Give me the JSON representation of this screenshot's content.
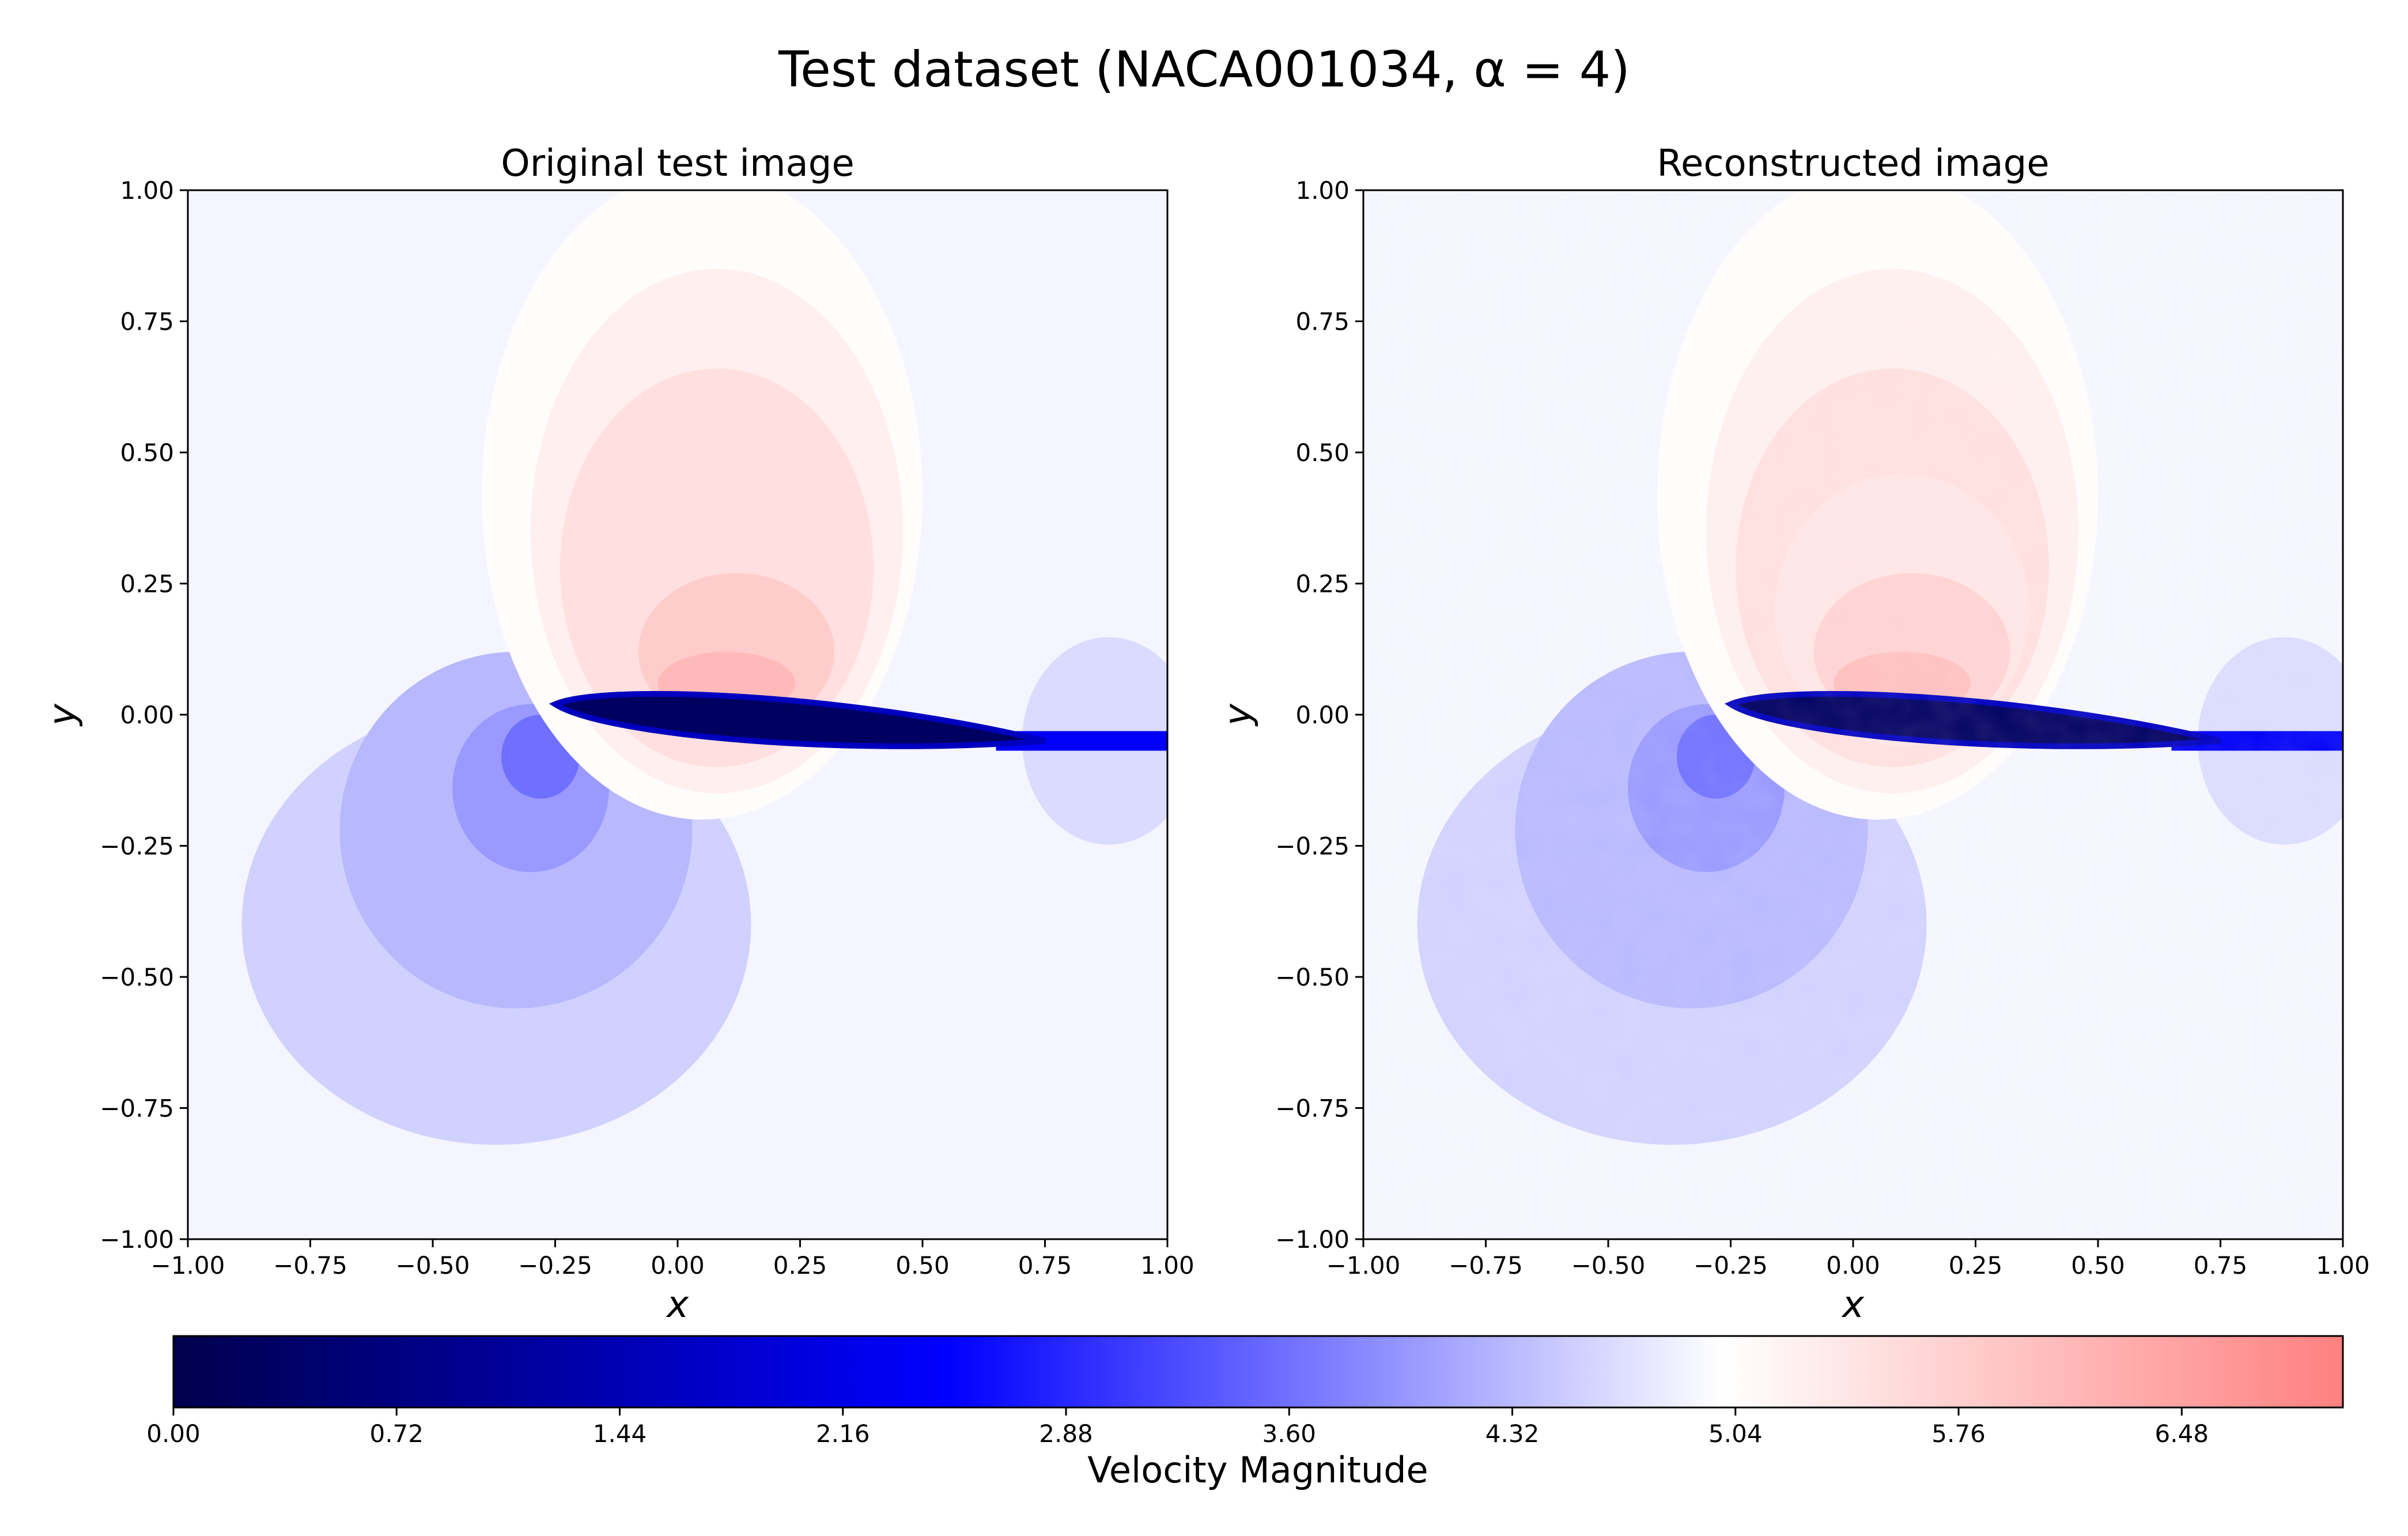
{
  "figure": {
    "title": "Test dataset (NACA001034, α = 4)"
  },
  "chart_data": [
    {
      "type": "heatmap",
      "title": "Original test image",
      "xlabel": "x",
      "ylabel": "y",
      "xlim": [
        -1.0,
        1.0
      ],
      "ylim": [
        -1.0,
        1.0
      ],
      "xticks": [
        "−1.00",
        "−0.75",
        "−0.50",
        "−0.25",
        "0.00",
        "0.25",
        "0.50",
        "0.75",
        "1.00"
      ],
      "yticks": [
        "−1.00",
        "−0.75",
        "−0.50",
        "−0.25",
        "0.00",
        "0.25",
        "0.50",
        "0.75",
        "1.00"
      ],
      "field": "Velocity Magnitude",
      "free_stream_value": 4.9,
      "airfoil": {
        "leading_edge": [
          -0.25,
          0.02
        ],
        "trailing_edge": [
          0.75,
          -0.05
        ],
        "wake_to": [
          1.0,
          -0.05
        ]
      },
      "suction_peak_value": 6.1,
      "noise": false
    },
    {
      "type": "heatmap",
      "title": "Reconstructed image",
      "xlabel": "x",
      "ylabel": "y",
      "xlim": [
        -1.0,
        1.0
      ],
      "ylim": [
        -1.0,
        1.0
      ],
      "xticks": [
        "−1.00",
        "−0.75",
        "−0.50",
        "−0.25",
        "0.00",
        "0.25",
        "0.50",
        "0.75",
        "1.00"
      ],
      "yticks": [
        "−1.00",
        "−0.75",
        "−0.50",
        "−0.25",
        "0.00",
        "0.25",
        "0.50",
        "0.75",
        "1.00"
      ],
      "field": "Velocity Magnitude",
      "free_stream_value": 4.9,
      "airfoil": {
        "leading_edge": [
          -0.25,
          0.02
        ],
        "trailing_edge": [
          0.75,
          -0.05
        ],
        "wake_to": [
          1.0,
          -0.05
        ]
      },
      "suction_peak_value": 6.0,
      "noise": true
    }
  ],
  "colorbar": {
    "label": "Velocity Magnitude",
    "min": 0.0,
    "max": 7.0,
    "ticks": [
      "0.00",
      "0.72",
      "1.44",
      "2.16",
      "2.88",
      "3.60",
      "4.32",
      "5.04",
      "5.76",
      "6.48"
    ],
    "tick_values": [
      0.0,
      0.72,
      1.44,
      2.16,
      2.88,
      3.6,
      4.32,
      5.04,
      5.76,
      6.48
    ],
    "colormap": "seismic",
    "colors": [
      "#00004c",
      "#0000ff",
      "#ffffff",
      "#ff8080"
    ]
  }
}
